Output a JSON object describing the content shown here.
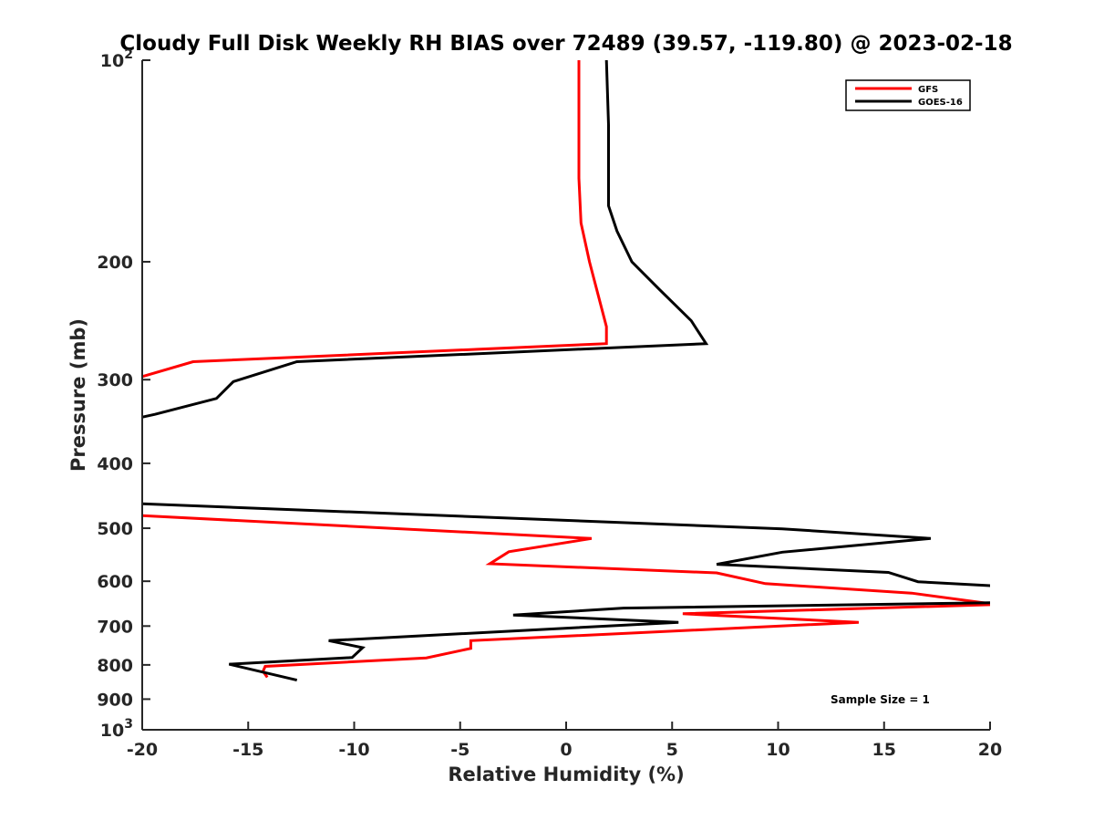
{
  "chart_data": {
    "type": "line",
    "title": "Cloudy Full Disk Weekly RH BIAS over 72489 (39.57, -119.80) @ 2023-02-18",
    "xlabel": "Relative Humidity (%)",
    "ylabel": "Pressure (mb)",
    "xlim": [
      -20,
      20
    ],
    "ylim": [
      1000,
      100
    ],
    "y_scale": "log",
    "y_reversed": true,
    "x_ticks": [
      "-20",
      "-15",
      "-10",
      "-5",
      "0",
      "5",
      "10",
      "15",
      "20"
    ],
    "y_ticks": [
      {
        "value": 100,
        "base": "10",
        "exp": "2"
      },
      {
        "value": 200,
        "label": "200"
      },
      {
        "value": 300,
        "label": "300"
      },
      {
        "value": 400,
        "label": "400"
      },
      {
        "value": 500,
        "label": "500"
      },
      {
        "value": 600,
        "label": "600"
      },
      {
        "value": 700,
        "label": "700"
      },
      {
        "value": 800,
        "label": "800"
      },
      {
        "value": 900,
        "label": "900"
      },
      {
        "value": 1000,
        "base": "10",
        "exp": "3"
      }
    ],
    "grid": false,
    "legend_position": "top-right",
    "series": [
      {
        "name": "GFS",
        "color": "#ff0000",
        "points": [
          [
            0.6,
            100
          ],
          [
            0.6,
            125
          ],
          [
            0.6,
            150
          ],
          [
            0.7,
            175
          ],
          [
            1.1,
            200
          ],
          [
            1.9,
            250
          ],
          [
            1.9,
            265
          ],
          [
            -17.6,
            282
          ],
          [
            -20.5,
            300
          ],
          [
            null,
            null
          ],
          [
            -20.5,
            478
          ],
          [
            1.2,
            518
          ],
          [
            -2.7,
            542
          ],
          [
            -3.6,
            565
          ],
          [
            7.1,
            583
          ],
          [
            9.4,
            605
          ],
          [
            16.3,
            625
          ],
          [
            20.3,
            650
          ],
          [
            5.5,
            671
          ],
          [
            13.8,
            691
          ],
          [
            -4.5,
            736
          ],
          [
            -4.5,
            756
          ],
          [
            -6.6,
            781
          ],
          [
            -14.2,
            804
          ],
          [
            -14.3,
            818
          ],
          [
            -14.1,
            835
          ]
        ]
      },
      {
        "name": "GOES-16",
        "color": "#000000",
        "points": [
          [
            1.9,
            100
          ],
          [
            2.0,
            125
          ],
          [
            2.0,
            150
          ],
          [
            2.0,
            165
          ],
          [
            2.4,
            180
          ],
          [
            3.1,
            200
          ],
          [
            4.4,
            220
          ],
          [
            5.9,
            245
          ],
          [
            6.6,
            265
          ],
          [
            -12.7,
            282
          ],
          [
            -15.7,
            302
          ],
          [
            -16.5,
            320
          ],
          [
            -19.4,
            338
          ],
          [
            -20.5,
            344
          ],
          [
            null,
            null
          ],
          [
            -20.5,
            459
          ],
          [
            10.2,
            501
          ],
          [
            17.2,
            518
          ],
          [
            10.2,
            543
          ],
          [
            7.1,
            566
          ],
          [
            15.2,
            582
          ],
          [
            16.6,
            601
          ],
          [
            20.3,
            610
          ],
          [
            20.3,
            646
          ],
          [
            2.7,
            658
          ],
          [
            -2.5,
            674
          ],
          [
            5.3,
            691
          ],
          [
            -11.2,
            736
          ],
          [
            -9.6,
            754
          ],
          [
            -10.1,
            780
          ],
          [
            -15.9,
            798
          ],
          [
            -12.7,
            843
          ]
        ]
      }
    ],
    "annotation": "Sample Size = 1"
  }
}
